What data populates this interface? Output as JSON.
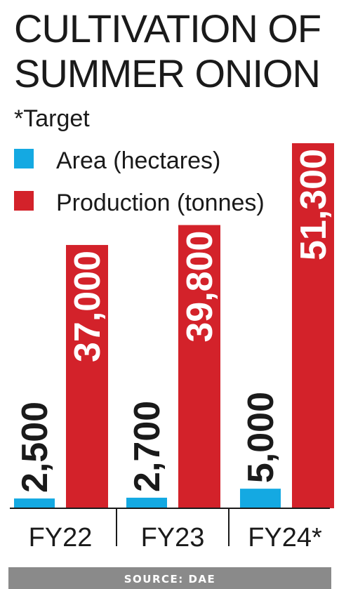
{
  "chart_data": {
    "type": "bar",
    "title_lines": [
      "CULTIVATION OF",
      "SUMMER ONION"
    ],
    "note": "*Target",
    "categories": [
      "FY22",
      "FY23",
      "FY24*"
    ],
    "series": [
      {
        "name": "Area (hectares)",
        "color": "#14a9e2",
        "values": [
          2500,
          2700,
          5000
        ],
        "labels": [
          "2,500",
          "2,700",
          "5,000"
        ]
      },
      {
        "name": "Production (tonnes)",
        "color": "#d3222a",
        "values": [
          37000,
          39800,
          51300
        ],
        "labels": [
          "37,000",
          "39,800",
          "51,300"
        ]
      }
    ],
    "source": "SOURCE: DAE",
    "legend_position": "top-left",
    "grid": false
  }
}
